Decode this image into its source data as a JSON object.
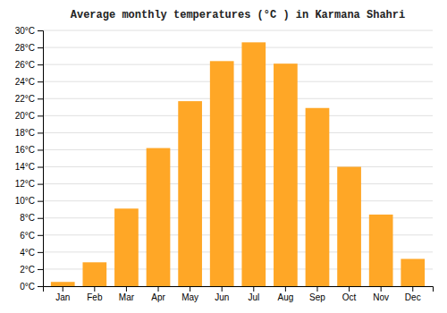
{
  "chart_data": {
    "type": "bar",
    "title": "Average monthly temperatures (°C ) in Karmana Shahri",
    "categories": [
      "Jan",
      "Feb",
      "Mar",
      "Apr",
      "May",
      "Jun",
      "Jul",
      "Aug",
      "Sep",
      "Oct",
      "Nov",
      "Dec"
    ],
    "values": [
      0.5,
      2.8,
      9.1,
      16.2,
      21.7,
      26.4,
      28.6,
      26.1,
      20.9,
      14.0,
      8.4,
      3.2
    ],
    "color": "#FFA726",
    "ylim": [
      0,
      30
    ],
    "yticks": [
      {
        "value": 0,
        "label": "0°C"
      },
      {
        "value": 2,
        "label": "2°C"
      },
      {
        "value": 4,
        "label": "4°C"
      },
      {
        "value": 6,
        "label": "6°C"
      },
      {
        "value": 8,
        "label": "8°C"
      },
      {
        "value": 10,
        "label": "10°C"
      },
      {
        "value": 12,
        "label": "12°C"
      },
      {
        "value": 14,
        "label": "14°C"
      },
      {
        "value": 16,
        "label": "16°C"
      },
      {
        "value": 18,
        "label": "18°C"
      },
      {
        "value": 20,
        "label": "20°C"
      },
      {
        "value": 22,
        "label": "22°C"
      },
      {
        "value": 24,
        "label": "24°C"
      },
      {
        "value": 26,
        "label": "26°C"
      },
      {
        "value": 28,
        "label": "28°C"
      },
      {
        "value": 30,
        "label": "30°C"
      }
    ],
    "grid": true
  }
}
